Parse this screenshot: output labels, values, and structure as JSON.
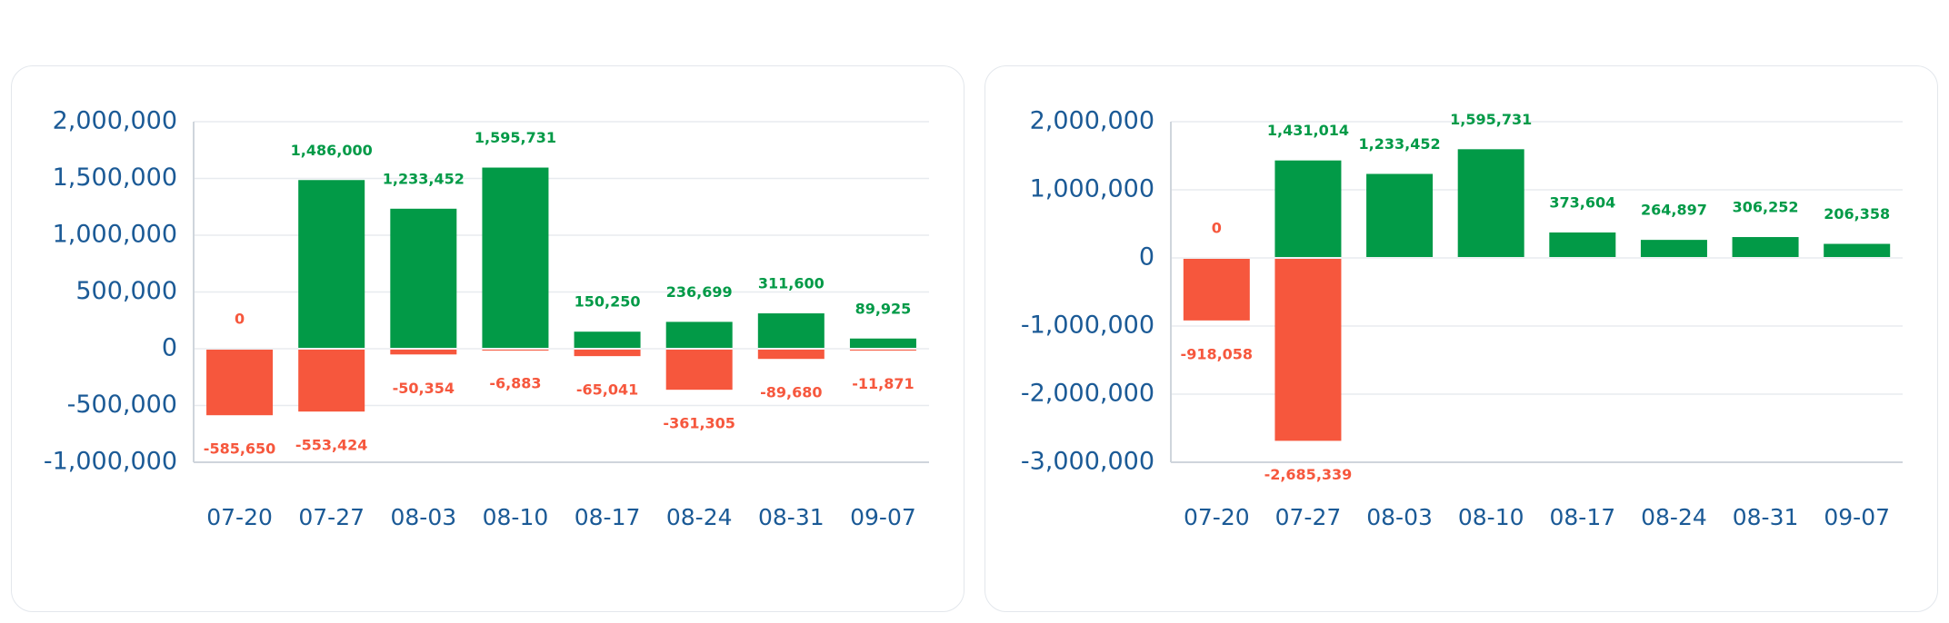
{
  "colors": {
    "positive": "#029a47",
    "negative": "#f6573d",
    "tick": "#1b5a96",
    "grid": "#e8ebef"
  },
  "chart_data": [
    {
      "type": "bar",
      "title": "",
      "xlabel": "",
      "ylabel": "",
      "categories": [
        "07-20",
        "07-27",
        "08-03",
        "08-10",
        "08-17",
        "08-24",
        "08-31",
        "09-07"
      ],
      "series": [
        {
          "values": [
            0,
            1486000,
            1233452,
            1595731,
            150250,
            236699,
            311600,
            89925
          ]
        },
        {
          "values": [
            -585650,
            -553424,
            -50354,
            -6883,
            -65041,
            -361305,
            -89680,
            -11871
          ]
        }
      ],
      "ylim": [
        -1000000,
        2000000
      ],
      "yticks": [
        2000000,
        1500000,
        1000000,
        500000,
        0,
        -500000,
        -1000000
      ],
      "ytick_labels": [
        "2,000,000",
        "1,500,000",
        "1,000,000",
        "500,000",
        "0",
        "-500,000",
        "-1,000,000"
      ],
      "data_labels_pos": [
        "0",
        "1,486,000",
        "1,233,452",
        "1,595,731",
        "150,250",
        "236,699",
        "311,600",
        "89,925"
      ],
      "data_labels_neg": [
        "-585,650",
        "-553,424",
        "-50,354",
        "-6,883",
        "-65,041",
        "-361,305",
        "-89,680",
        "-11,871"
      ],
      "grid": true,
      "stacked": true
    },
    {
      "type": "bar",
      "title": "",
      "xlabel": "",
      "ylabel": "",
      "categories": [
        "07-20",
        "07-27",
        "08-03",
        "08-10",
        "08-17",
        "08-24",
        "08-31",
        "09-07"
      ],
      "series": [
        {
          "values": [
            0,
            1431014,
            1233452,
            1595731,
            373604,
            264897,
            306252,
            206358
          ]
        },
        {
          "values": [
            -918058,
            -2685339,
            0,
            0,
            0,
            0,
            0,
            0
          ]
        }
      ],
      "ylim": [
        -3000000,
        2000000
      ],
      "yticks": [
        2000000,
        1000000,
        0,
        -1000000,
        -2000000,
        -3000000
      ],
      "ytick_labels": [
        "2,000,000",
        "1,000,000",
        "0",
        "-1,000,000",
        "-2,000,000",
        "-3,000,000"
      ],
      "data_labels_pos": [
        "0",
        "1,431,014",
        "1,233,452",
        "1,595,731",
        "373,604",
        "264,897",
        "306,252",
        "206,358"
      ],
      "data_labels_neg": [
        "-918,058",
        "-2,685,339",
        "",
        "",
        "",
        "",
        "",
        ""
      ],
      "grid": true,
      "stacked": true
    }
  ]
}
